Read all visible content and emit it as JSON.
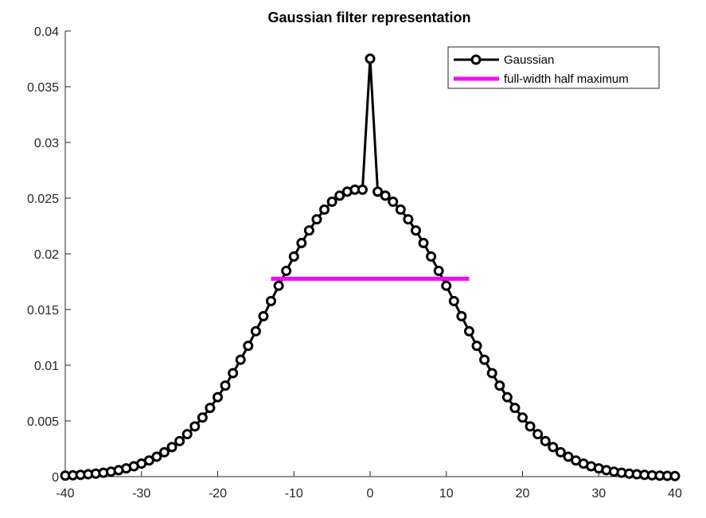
{
  "chart_data": {
    "type": "line",
    "title": "Gaussian filter representation",
    "xlabel": "",
    "ylabel": "",
    "xlim": [
      -40,
      40
    ],
    "ylim": [
      0,
      0.04
    ],
    "grid": false,
    "legend_position": "top-right",
    "x_ticks": [
      -40,
      -30,
      -20,
      -10,
      0,
      10,
      20,
      30,
      40
    ],
    "x_tick_labels": [
      "-40",
      "-30",
      "-20",
      "-10",
      "0",
      "10",
      "20",
      "30",
      "40"
    ],
    "y_ticks": [
      0,
      0.005,
      0.01,
      0.015,
      0.02,
      0.025,
      0.03,
      0.035,
      0.04
    ],
    "y_tick_labels": [
      "0",
      "0.005",
      "0.01",
      "0.015",
      "0.02",
      "0.025",
      "0.03",
      "0.035",
      "0.04"
    ],
    "series": [
      {
        "name": "Gaussian",
        "color": "#000000",
        "marker": "circle",
        "x": [
          -40,
          -39,
          -38,
          -37,
          -36,
          -35,
          -34,
          -33,
          -32,
          -31,
          -30,
          -29,
          -28,
          -27,
          -26,
          -25,
          -24,
          -23,
          -22,
          -21,
          -20,
          -19,
          -18,
          -17,
          -16,
          -15,
          -14,
          -13,
          -12,
          -11,
          -10,
          -9,
          -8,
          -7,
          -6,
          -5,
          -4,
          -3,
          -2,
          -1,
          0,
          1,
          2,
          3,
          4,
          5,
          6,
          7,
          8,
          9,
          10,
          11,
          12,
          13,
          14,
          15,
          16,
          17,
          18,
          19,
          20,
          21,
          22,
          23,
          24,
          25,
          26,
          27,
          28,
          29,
          30,
          31,
          32,
          33,
          34,
          35,
          36,
          37,
          38,
          39,
          40
        ],
        "y": [
          9e-05,
          0.00012,
          0.00016,
          0.00021,
          0.00027,
          0.00035,
          0.00045,
          0.00058,
          0.00074,
          0.00093,
          0.00117,
          0.00145,
          0.00179,
          0.00219,
          0.00265,
          0.00319,
          0.00381,
          0.00451,
          0.0053,
          0.00617,
          0.00713,
          0.00817,
          0.00929,
          0.01049,
          0.01174,
          0.01305,
          0.0144,
          0.01576,
          0.01713,
          0.01847,
          0.01976,
          0.02097,
          0.0221,
          0.0231,
          0.02397,
          0.02468,
          0.02522,
          0.02558,
          0.02576,
          0.02576,
          0.03752,
          0.02558,
          0.02522,
          0.02468,
          0.02397,
          0.0231,
          0.0221,
          0.02097,
          0.01976,
          0.01847,
          0.01713,
          0.01576,
          0.0144,
          0.01305,
          0.01174,
          0.01049,
          0.00929,
          0.00817,
          0.00713,
          0.00617,
          0.0053,
          0.00451,
          0.00381,
          0.00319,
          0.00265,
          0.00219,
          0.00179,
          0.00145,
          0.00117,
          0.00093,
          0.00074,
          0.00058,
          0.00045,
          0.00035,
          0.00027,
          0.00021,
          0.00016,
          0.00012,
          9e-05,
          7e-05,
          5e-05
        ]
      },
      {
        "name": "full-width half maximum",
        "color": "#ff00ff",
        "x": [
          -13,
          13
        ],
        "y": [
          0.01776,
          0.01776
        ]
      }
    ]
  }
}
